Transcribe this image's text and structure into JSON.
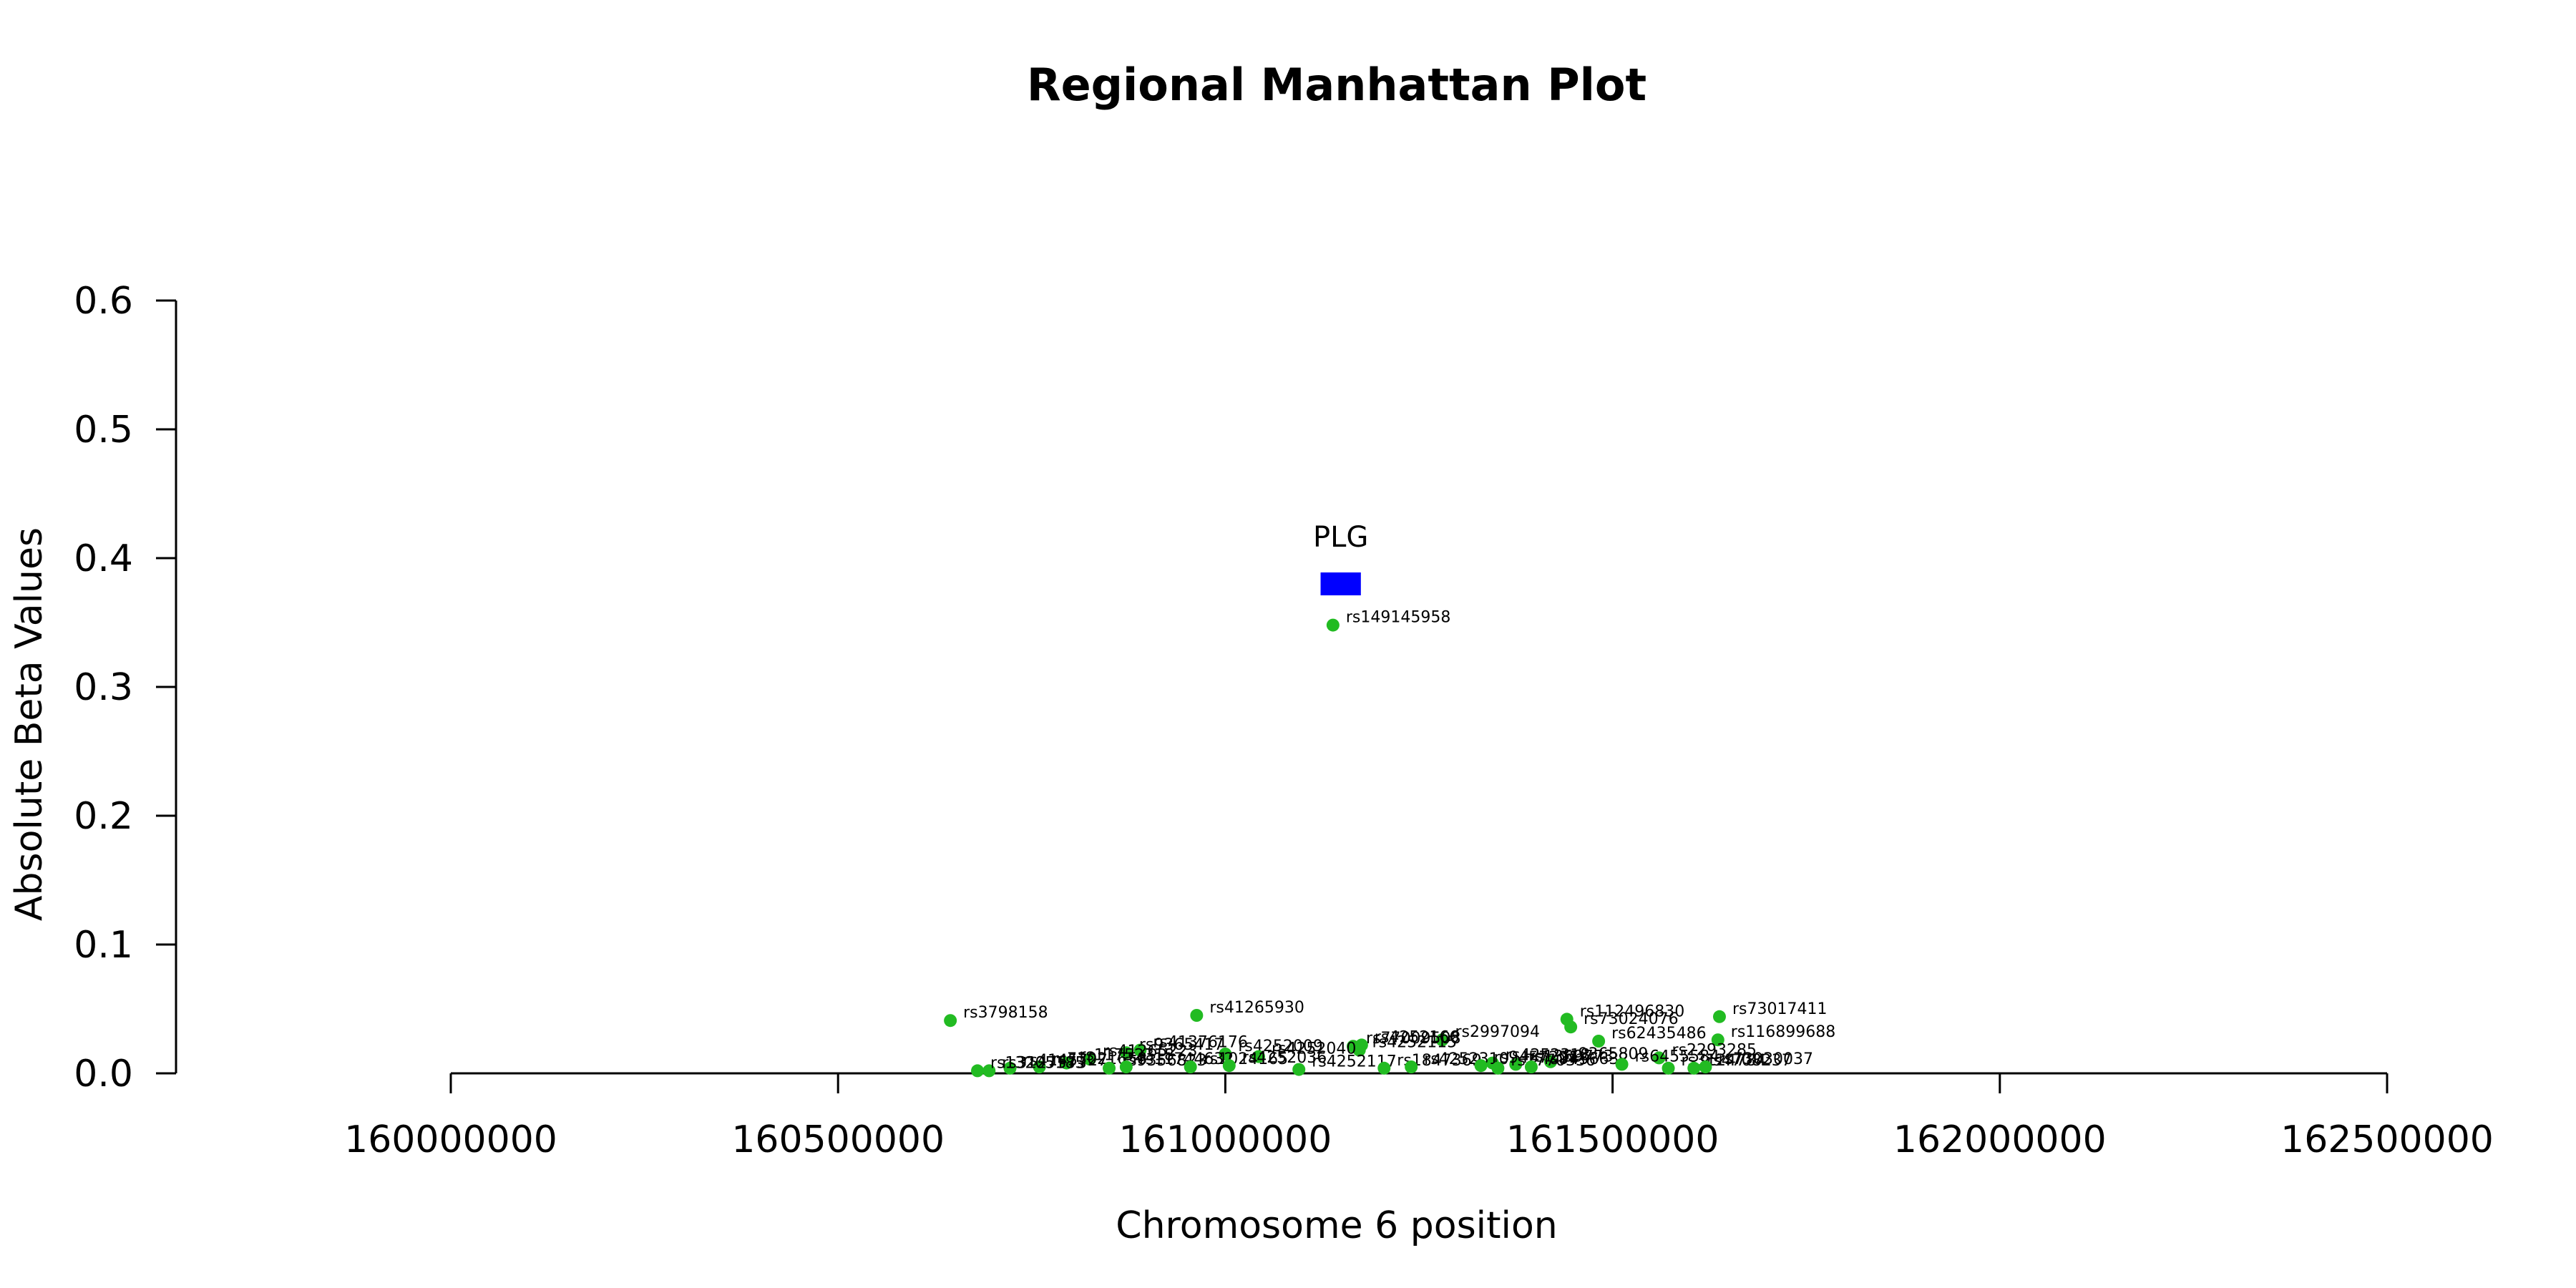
{
  "chart_data": {
    "type": "scatter",
    "title": "Regional Manhattan Plot",
    "xlabel": "Chromosome 6 position",
    "ylabel": "Absolute Beta Values",
    "xlim": [
      160000000,
      162500000
    ],
    "ylim": [
      0,
      0.6
    ],
    "x_ticks": [
      160000000,
      160500000,
      161000000,
      161500000,
      162000000,
      162500000
    ],
    "x_tick_labels": [
      "160000000",
      "160500000",
      "161000000",
      "161500000",
      "162000000",
      "162500000"
    ],
    "y_ticks": [
      0,
      0.1,
      0.2,
      0.3,
      0.4,
      0.5,
      0.6
    ],
    "y_tick_labels": [
      "0.0",
      "0.1",
      "0.2",
      "0.3",
      "0.4",
      "0.5",
      "0.6"
    ],
    "point_color": "#22bb22",
    "gene_color": "#0000ff",
    "genes": [
      {
        "name": "PLG",
        "start": 161123000,
        "end": 161175000,
        "y": 0.38
      }
    ],
    "series": [
      {
        "points": [
          {
            "x": 161139000,
            "y": 0.348,
            "label": "rs149145958"
          },
          {
            "x": 160645000,
            "y": 0.041,
            "label": "rs3798158"
          },
          {
            "x": 160963000,
            "y": 0.045,
            "label": "rs41265930"
          },
          {
            "x": 161441000,
            "y": 0.042,
            "label": "rs112496830"
          },
          {
            "x": 161446000,
            "y": 0.036,
            "label": "rs73024076"
          },
          {
            "x": 161638000,
            "y": 0.044,
            "label": "rs73017411"
          },
          {
            "x": 161636000,
            "y": 0.026,
            "label": "rs116899688"
          },
          {
            "x": 161482000,
            "y": 0.025,
            "label": "rs62435486"
          },
          {
            "x": 161280000,
            "y": 0.026,
            "label": "rs2997094"
          },
          {
            "x": 161165000,
            "y": 0.021,
            "label": "rs77009508"
          },
          {
            "x": 161176000,
            "y": 0.022,
            "label": "rs4252166"
          },
          {
            "x": 161173000,
            "y": 0.018,
            "label": "rs4252115"
          },
          {
            "x": 160872000,
            "y": 0.016,
            "label": "rs9365417"
          },
          {
            "x": 160890000,
            "y": 0.018,
            "label": "rs41376176"
          },
          {
            "x": 161000000,
            "y": 0.015,
            "label": "rs4252009"
          },
          {
            "x": 161043000,
            "y": 0.013,
            "label": "rs4252040"
          },
          {
            "x": 161560000,
            "y": 0.012,
            "label": "rs2293285"
          },
          {
            "x": 161345000,
            "y": 0.008,
            "label": "rs4252318"
          },
          {
            "x": 161420000,
            "y": 0.009,
            "label": "rs9365809"
          },
          {
            "x": 161375000,
            "y": 0.007,
            "label": "rs1359773"
          },
          {
            "x": 160825000,
            "y": 0.011,
            "label": "rs41265223"
          },
          {
            "x": 160795000,
            "y": 0.008,
            "label": "rs11752318"
          },
          {
            "x": 160760000,
            "y": 0.005,
            "label": "rs73021658"
          },
          {
            "x": 160722000,
            "y": 0.004,
            "label": "rs4145727"
          },
          {
            "x": 160695000,
            "y": 0.002,
            "label": "rs3127573"
          },
          {
            "x": 160680000,
            "y": 0.002,
            "label": "rs13205185"
          },
          {
            "x": 160850000,
            "y": 0.004,
            "label": "rs9356823"
          },
          {
            "x": 160872000,
            "y": 0.005,
            "label": "rs11744632"
          },
          {
            "x": 160955000,
            "y": 0.005,
            "label": "rs1024165"
          },
          {
            "x": 161005000,
            "y": 0.006,
            "label": "rs4252036"
          },
          {
            "x": 161095000,
            "y": 0.003,
            "label": "rs4252117"
          },
          {
            "x": 161205000,
            "y": 0.004,
            "label": "rs1847369"
          },
          {
            "x": 161240000,
            "y": 0.005,
            "label": "rs4252310"
          },
          {
            "x": 161330000,
            "y": 0.006,
            "label": "rs9457221"
          },
          {
            "x": 161352000,
            "y": 0.004,
            "label": "rs7770336"
          },
          {
            "x": 161395000,
            "y": 0.005,
            "label": "rs9456632"
          },
          {
            "x": 161512000,
            "y": 0.007,
            "label": "rs6455584"
          },
          {
            "x": 161572000,
            "y": 0.004,
            "label": "rs3124784"
          },
          {
            "x": 161605000,
            "y": 0.004,
            "label": "rs4708237"
          },
          {
            "x": 161620000,
            "y": 0.005,
            "label": "rs73030037"
          }
        ]
      }
    ]
  }
}
